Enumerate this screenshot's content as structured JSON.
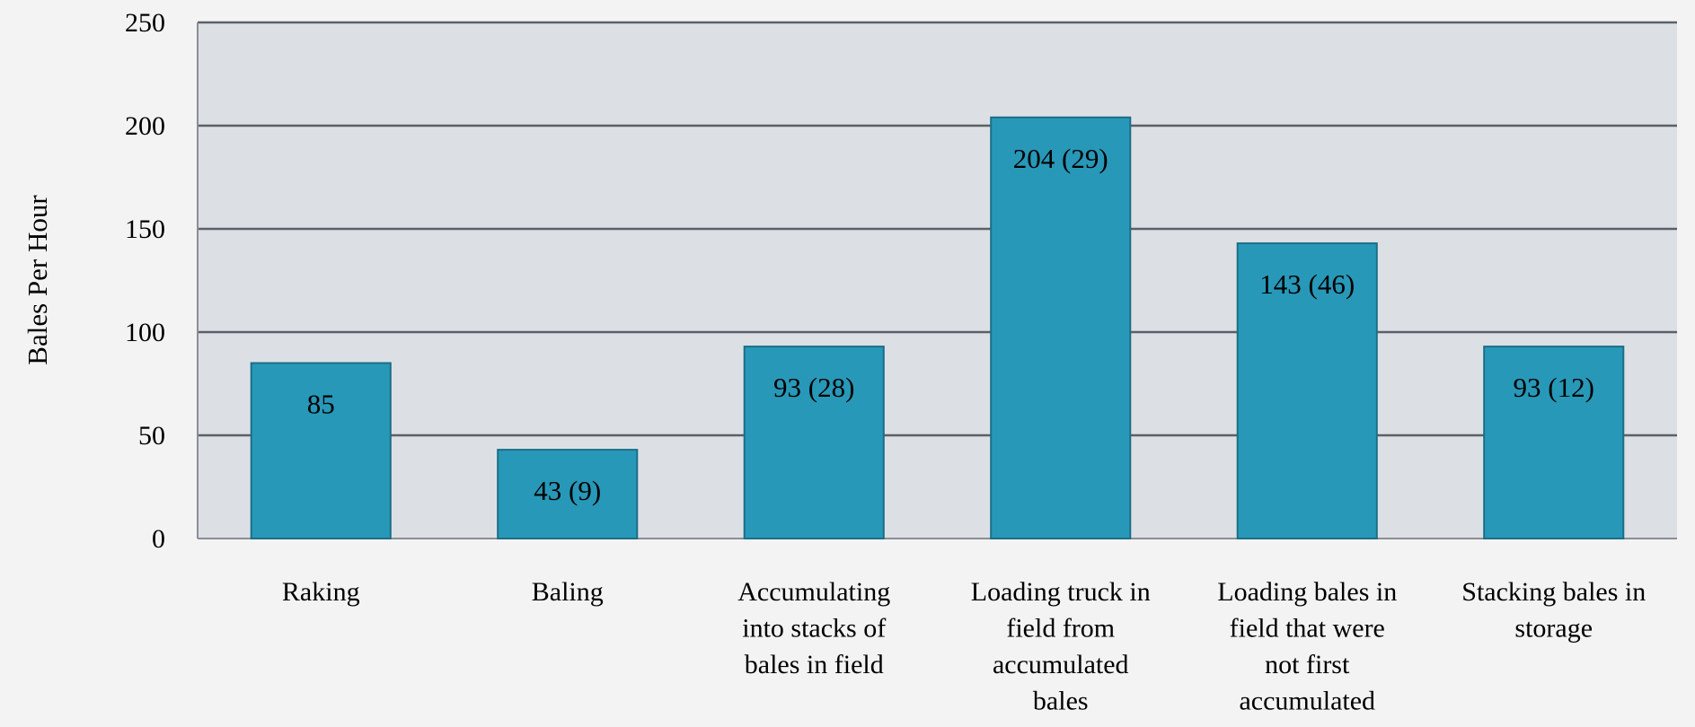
{
  "chart_data": {
    "type": "bar",
    "title": "",
    "xlabel": "",
    "ylabel": "Bales Per Hour",
    "ylim": [
      0,
      250
    ],
    "yticks": [
      0,
      50,
      100,
      150,
      200,
      250
    ],
    "grid": true,
    "legend": "none",
    "categories": [
      "Raking",
      "Baling",
      "Accumulating into stacks of bales in field",
      "Loading truck in field from accumulated bales",
      "Loading bales in field that were not first accumulated",
      "Stacking bales in storage"
    ],
    "category_lines": [
      [
        "Raking"
      ],
      [
        "Baling"
      ],
      [
        "Accumulating",
        "into stacks of",
        "bales in field"
      ],
      [
        "Loading truck in",
        "field from",
        "accumulated",
        "bales"
      ],
      [
        "Loading bales in",
        "field that were",
        "not first",
        "accumulated"
      ],
      [
        "Stacking bales in",
        "storage"
      ]
    ],
    "values": [
      85,
      43,
      93,
      204,
      143,
      93
    ],
    "data_labels": [
      "85",
      "43 (9)",
      "93 (28)",
      "204 (29)",
      "143 (46)",
      "93 (12)"
    ],
    "colors": {
      "bar": "#2898b8",
      "bar_edge": "#1b6e87",
      "plot_bg": "#dce0e4",
      "gridline": "#5a6066",
      "axis": "#8a8e92"
    }
  }
}
